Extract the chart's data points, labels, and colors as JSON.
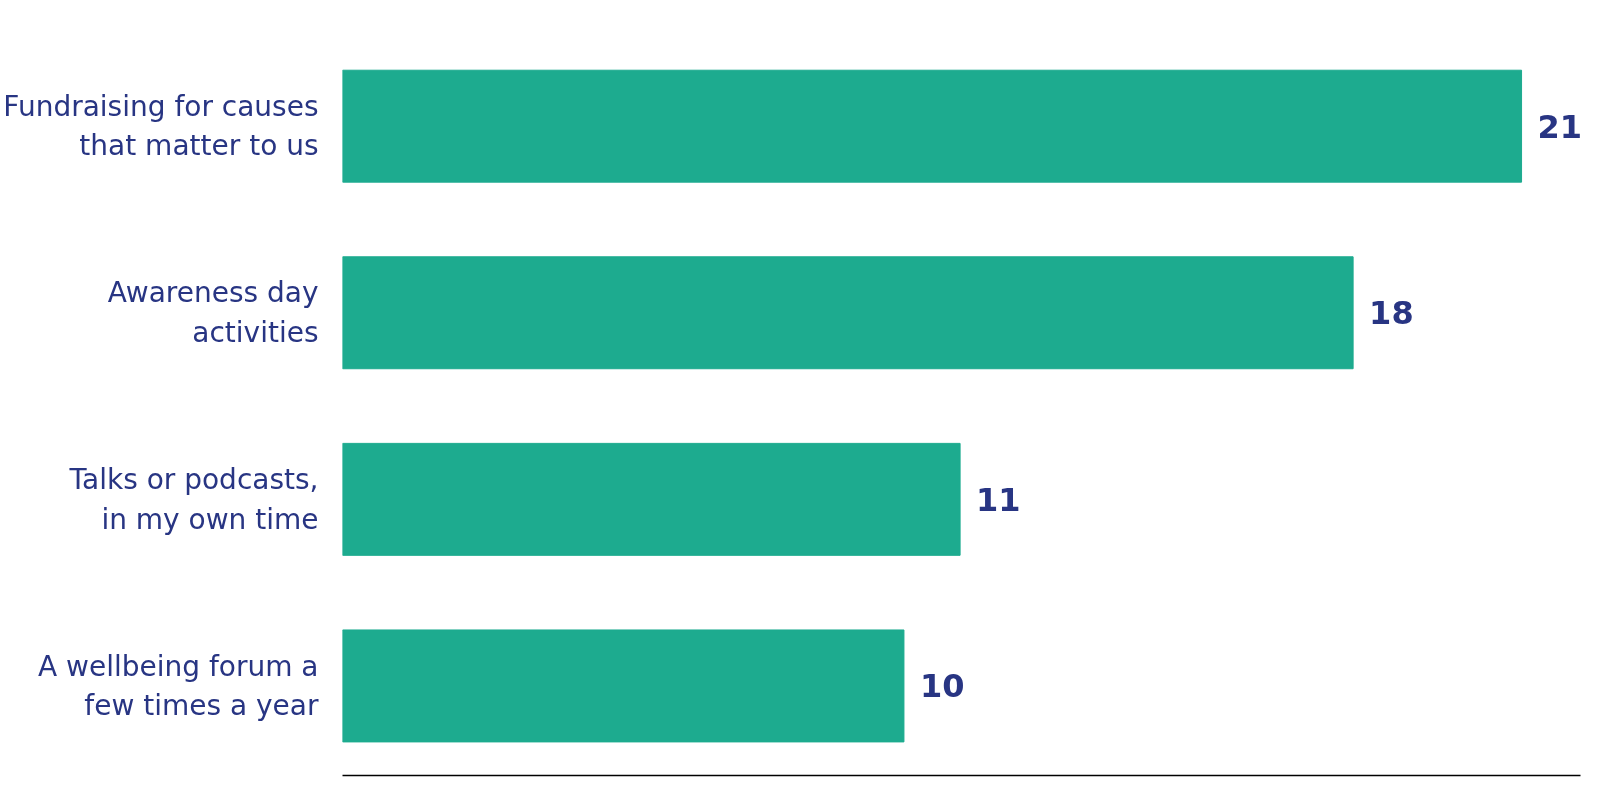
{
  "chart_data": {
    "type": "bar",
    "orientation": "horizontal",
    "categories": [
      "Fundraising for causes\nthat matter to us",
      "Awareness day\nactivities",
      "Talks or podcasts,\nin my own time",
      "A wellbeing forum a\nfew times a year"
    ],
    "values": [
      21,
      18,
      11,
      10
    ],
    "color": "#1dab8f",
    "data_labels": true,
    "grid": false
  }
}
